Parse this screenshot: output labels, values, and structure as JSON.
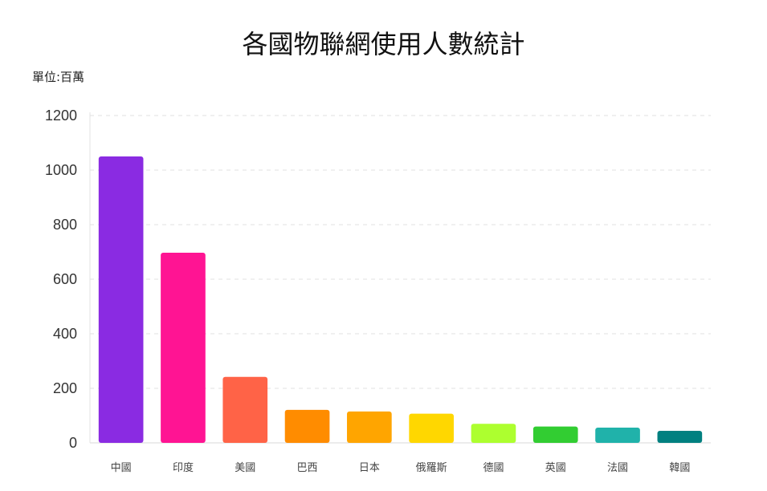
{
  "chart_data": {
    "type": "bar",
    "title": "各國物聯網使用人數統計",
    "unit_label": "單位:百萬",
    "categories": [
      "中國",
      "印度",
      "美國",
      "巴西",
      "日本",
      "俄羅斯",
      "德國",
      "英國",
      "法國",
      "韓國"
    ],
    "values": [
      1050,
      697,
      242,
      121,
      115,
      107,
      70,
      60,
      56,
      44
    ],
    "colors": [
      "#8A2BE2",
      "#FF1493",
      "#FF6347",
      "#FF8C00",
      "#FFA500",
      "#FFD700",
      "#ADFF2F",
      "#32CD32",
      "#20B2AA",
      "#008080"
    ],
    "ylim": [
      0,
      1200
    ],
    "yticks": [
      0,
      200,
      400,
      600,
      800,
      1000,
      1200
    ],
    "grid": true
  }
}
